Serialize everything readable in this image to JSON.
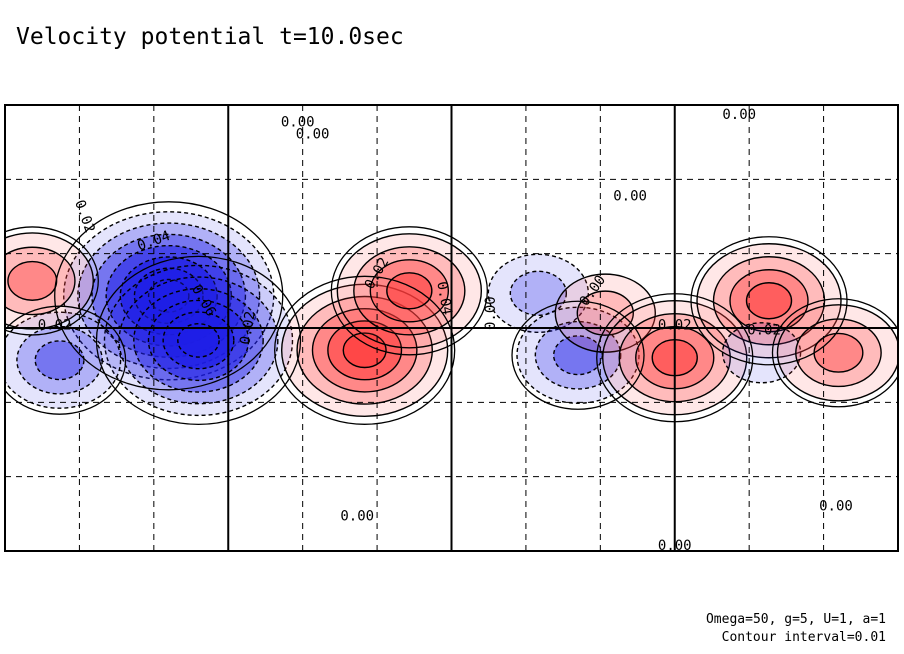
{
  "title": "Velocity potential t=10.0sec",
  "footer": {
    "params": "Omega=50, g=5, U=1, a=1",
    "contour": "Contour interval=0.01"
  },
  "colors": {
    "positive": "#e8464b",
    "positive_strong": "#e02a34",
    "negative": "#2a2ae6",
    "negative_strong": "#0b0bd8",
    "frame": "#000000",
    "grid": "#000000"
  },
  "chart_data": {
    "type": "heatmap",
    "title": "Velocity potential t=10.0sec",
    "projection": "equirectangular",
    "lon_range": [
      0,
      360
    ],
    "lat_range": [
      -90,
      90
    ],
    "solid_grid_lon": [
      90,
      180,
      270
    ],
    "solid_grid_lat": [
      0
    ],
    "dashed_grid_lon": [
      30,
      60,
      120,
      150,
      210,
      240,
      300,
      330
    ],
    "dashed_grid_lat": [
      -60,
      -30,
      30,
      60
    ],
    "contour_interval": 0.01,
    "value_range": [
      -0.07,
      0.06
    ],
    "zero_line": 0.0,
    "negative_lines": "dashed",
    "positive_lines": "solid",
    "centers": [
      {
        "sign": "neg",
        "lon": 66,
        "lat": 13,
        "amp": 0.07
      },
      {
        "sign": "neg",
        "lon": 78,
        "lat": -5,
        "amp": 0.06
      },
      {
        "sign": "neg",
        "lon": 22,
        "lat": -13,
        "amp": 0.03
      },
      {
        "sign": "pos",
        "lon": 11,
        "lat": 19,
        "amp": 0.03
      },
      {
        "sign": "pos",
        "lon": 145,
        "lat": -9,
        "amp": 0.05
      },
      {
        "sign": "pos",
        "lon": 163,
        "lat": 15,
        "amp": 0.04
      },
      {
        "sign": "neg",
        "lon": 215,
        "lat": 14,
        "amp": 0.02
      },
      {
        "sign": "neg",
        "lon": 231,
        "lat": -11,
        "amp": 0.03
      },
      {
        "sign": "pos",
        "lon": 242,
        "lat": 6,
        "amp": 0.02
      },
      {
        "sign": "pos",
        "lon": 270,
        "lat": -12,
        "amp": 0.04
      },
      {
        "sign": "pos",
        "lon": 308,
        "lat": 11,
        "amp": 0.04
      },
      {
        "sign": "neg",
        "lon": 305,
        "lat": -10,
        "amp": 0.01
      },
      {
        "sign": "pos",
        "lon": 336,
        "lat": -10,
        "amp": 0.03
      }
    ],
    "contour_labels": [
      {
        "text": "0.00",
        "lon": 118,
        "lat": 83
      },
      {
        "text": "0.00",
        "lon": 124,
        "lat": 78
      },
      {
        "text": "0.00",
        "lon": 296,
        "lat": 86
      },
      {
        "text": "0.00",
        "lon": 252,
        "lat": 53
      },
      {
        "text": "0.02",
        "lon": 32,
        "lat": 45,
        "rot": 70
      },
      {
        "text": "0.04",
        "lon": 60,
        "lat": 35,
        "rot": -20
      },
      {
        "text": "0.06",
        "lon": 80,
        "lat": 11,
        "rot": 60
      },
      {
        "text": "0.02",
        "lon": 98,
        "lat": 0,
        "rot": -80
      },
      {
        "text": "0.02",
        "lon": 20,
        "lat": 1
      },
      {
        "text": "0.02",
        "lon": 150,
        "lat": 22,
        "rot": -60
      },
      {
        "text": "0.04",
        "lon": 177,
        "lat": 12,
        "rot": 80
      },
      {
        "text": "0.00",
        "lon": 196,
        "lat": 6,
        "rot": -90
      },
      {
        "text": "0.00",
        "lon": 237,
        "lat": 15,
        "rot": -55
      },
      {
        "text": "0.02",
        "lon": 270,
        "lat": 1
      },
      {
        "text": "0.02",
        "lon": 306,
        "lat": -1
      },
      {
        "text": "0.00",
        "lon": 142,
        "lat": -76
      },
      {
        "text": "0.00",
        "lon": 270,
        "lat": -88
      },
      {
        "text": "0.00",
        "lon": 335,
        "lat": -72
      }
    ]
  }
}
